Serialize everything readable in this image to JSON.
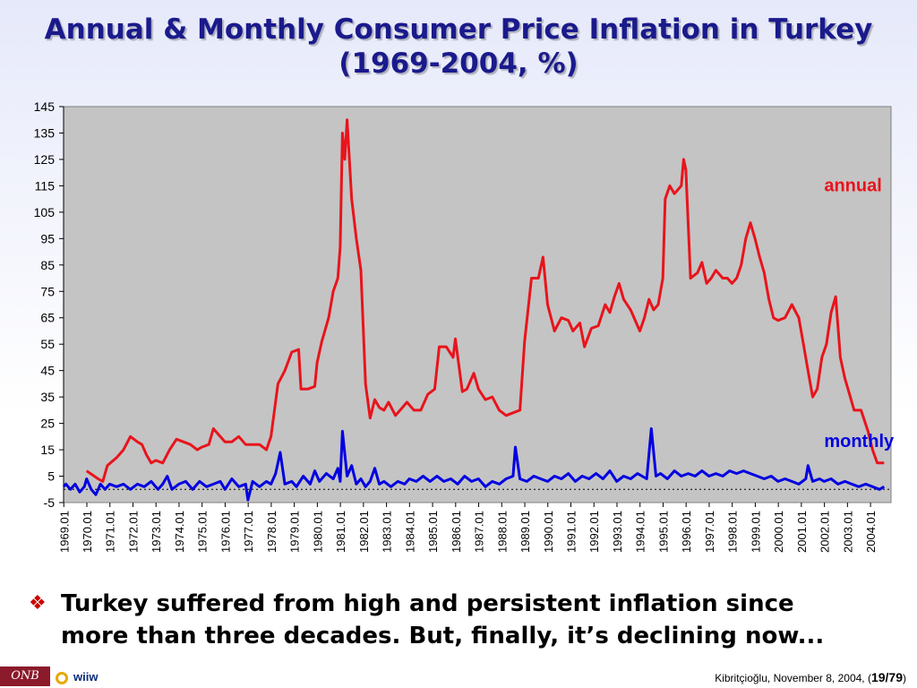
{
  "slide": {
    "title_line1": "Annual & Monthly Consumer Price Inflation in Turkey",
    "title_line2": "(1969-2004, %)",
    "bullet_line1": "Turkey suffered from high and persistent inflation since",
    "bullet_line2": "more than three decades. But, finally, it’s declining now...",
    "logo_onb": "ONB",
    "logo_wiiw": "wiiw",
    "credit_text": "Kibritçioğlu, November 8, 2004, (",
    "credit_page": "19/79",
    "credit_close": ")",
    "icons": {
      "bullet": "diamond-bullet-icon",
      "wiiw": "ring-logo-icon"
    }
  },
  "colors": {
    "annual": "#e8141c",
    "monthly": "#0000e0",
    "title": "#1a1a8c",
    "plot_bg": "#c0c0c0"
  },
  "chart_data": {
    "type": "line",
    "title": "Annual & Monthly Consumer Price Inflation in Turkey (1969-2004, %)",
    "ylim": [
      -5,
      145
    ],
    "yticks": [
      145,
      135,
      125,
      115,
      105,
      95,
      85,
      75,
      65,
      55,
      45,
      35,
      25,
      15,
      5,
      -5
    ],
    "x_range": [
      1969.0,
      2004.9
    ],
    "xtick_labels": [
      "1969.01",
      "1970.01",
      "1971.01",
      "1972.01",
      "1973.01",
      "1974.01",
      "1975.01",
      "1976.01",
      "1977.01",
      "1978.01",
      "1979.01",
      "1980.01",
      "1981.01",
      "1982.01",
      "1983.01",
      "1984.01",
      "1985.01",
      "1986.01",
      "1987.01",
      "1988.01",
      "1989.01",
      "1990.01",
      "1991.01",
      "1992.01",
      "1993.01",
      "1994.01",
      "1995.01",
      "1996.01",
      "1997.01",
      "1998.01",
      "1999.01",
      "2000.01",
      "2001.01",
      "2002.01",
      "2003.01",
      "2004.01"
    ],
    "grid": false,
    "zero_line": "dotted",
    "series": [
      {
        "name": "annual",
        "color": "#e8141c",
        "points": [
          [
            1970.0,
            7
          ],
          [
            1970.5,
            4
          ],
          [
            1970.7,
            3
          ],
          [
            1970.9,
            9
          ],
          [
            1971.3,
            12
          ],
          [
            1971.6,
            15
          ],
          [
            1971.9,
            20
          ],
          [
            1972.2,
            18
          ],
          [
            1972.4,
            17
          ],
          [
            1972.6,
            13
          ],
          [
            1972.8,
            10
          ],
          [
            1973.0,
            11
          ],
          [
            1973.3,
            10
          ],
          [
            1973.6,
            15
          ],
          [
            1973.9,
            19
          ],
          [
            1974.2,
            18
          ],
          [
            1974.5,
            17
          ],
          [
            1974.8,
            15
          ],
          [
            1975.0,
            16
          ],
          [
            1975.3,
            17
          ],
          [
            1975.5,
            23
          ],
          [
            1975.7,
            21
          ],
          [
            1976.0,
            18
          ],
          [
            1976.3,
            18
          ],
          [
            1976.6,
            20
          ],
          [
            1976.9,
            17
          ],
          [
            1977.2,
            17
          ],
          [
            1977.5,
            17
          ],
          [
            1977.8,
            15
          ],
          [
            1978.0,
            20
          ],
          [
            1978.3,
            40
          ],
          [
            1978.6,
            45
          ],
          [
            1978.9,
            52
          ],
          [
            1979.2,
            53
          ],
          [
            1979.3,
            38
          ],
          [
            1979.6,
            38
          ],
          [
            1979.9,
            39
          ],
          [
            1980.0,
            48
          ],
          [
            1980.2,
            56
          ],
          [
            1980.5,
            65
          ],
          [
            1980.7,
            75
          ],
          [
            1980.9,
            80
          ],
          [
            1981.0,
            92
          ],
          [
            1981.1,
            135
          ],
          [
            1981.2,
            125
          ],
          [
            1981.3,
            140
          ],
          [
            1981.5,
            110
          ],
          [
            1981.7,
            95
          ],
          [
            1981.9,
            83
          ],
          [
            1982.1,
            40
          ],
          [
            1982.3,
            27
          ],
          [
            1982.5,
            34
          ],
          [
            1982.7,
            31
          ],
          [
            1982.9,
            30
          ],
          [
            1983.1,
            33
          ],
          [
            1983.4,
            28
          ],
          [
            1983.6,
            30
          ],
          [
            1983.9,
            33
          ],
          [
            1984.2,
            30
          ],
          [
            1984.5,
            30
          ],
          [
            1984.8,
            36
          ],
          [
            1985.1,
            38
          ],
          [
            1985.3,
            54
          ],
          [
            1985.6,
            54
          ],
          [
            1985.9,
            50
          ],
          [
            1986.0,
            57
          ],
          [
            1986.3,
            37
          ],
          [
            1986.5,
            38
          ],
          [
            1986.8,
            44
          ],
          [
            1987.0,
            38
          ],
          [
            1987.3,
            34
          ],
          [
            1987.6,
            35
          ],
          [
            1987.9,
            30
          ],
          [
            1988.2,
            28
          ],
          [
            1988.5,
            29
          ],
          [
            1988.8,
            30
          ],
          [
            1989.0,
            56
          ],
          [
            1989.3,
            80
          ],
          [
            1989.6,
            80
          ],
          [
            1989.8,
            88
          ],
          [
            1990.0,
            70
          ],
          [
            1990.3,
            60
          ],
          [
            1990.6,
            65
          ],
          [
            1990.9,
            64
          ],
          [
            1991.1,
            60
          ],
          [
            1991.4,
            63
          ],
          [
            1991.6,
            54
          ],
          [
            1991.9,
            61
          ],
          [
            1992.2,
            62
          ],
          [
            1992.5,
            70
          ],
          [
            1992.7,
            67
          ],
          [
            1992.9,
            73
          ],
          [
            1993.1,
            78
          ],
          [
            1993.3,
            72
          ],
          [
            1993.6,
            68
          ],
          [
            1993.9,
            62
          ],
          [
            1994.0,
            60
          ],
          [
            1994.2,
            65
          ],
          [
            1994.4,
            72
          ],
          [
            1994.6,
            68
          ],
          [
            1994.8,
            70
          ],
          [
            1995.0,
            80
          ],
          [
            1995.1,
            110
          ],
          [
            1995.3,
            115
          ],
          [
            1995.5,
            112
          ],
          [
            1995.8,
            115
          ],
          [
            1995.9,
            125
          ],
          [
            1996.0,
            121
          ],
          [
            1996.2,
            80
          ],
          [
            1996.5,
            82
          ],
          [
            1996.7,
            86
          ],
          [
            1996.9,
            78
          ],
          [
            1997.1,
            80
          ],
          [
            1997.3,
            83
          ],
          [
            1997.6,
            80
          ],
          [
            1997.8,
            80
          ],
          [
            1998.0,
            78
          ],
          [
            1998.2,
            80
          ],
          [
            1998.4,
            85
          ],
          [
            1998.6,
            95
          ],
          [
            1998.8,
            101
          ],
          [
            1999.0,
            95
          ],
          [
            1999.2,
            88
          ],
          [
            1999.4,
            82
          ],
          [
            1999.6,
            72
          ],
          [
            1999.8,
            65
          ],
          [
            2000.0,
            64
          ],
          [
            2000.3,
            65
          ],
          [
            2000.6,
            70
          ],
          [
            2000.9,
            65
          ],
          [
            2001.1,
            55
          ],
          [
            2001.3,
            45
          ],
          [
            2001.5,
            35
          ],
          [
            2001.7,
            38
          ],
          [
            2001.9,
            50
          ],
          [
            2002.1,
            55
          ],
          [
            2002.3,
            67
          ],
          [
            2002.5,
            73
          ],
          [
            2002.7,
            50
          ],
          [
            2002.9,
            42
          ],
          [
            2003.1,
            36
          ],
          [
            2003.3,
            30
          ],
          [
            2003.6,
            30
          ],
          [
            2003.9,
            22
          ],
          [
            2004.1,
            15
          ],
          [
            2004.3,
            10
          ],
          [
            2004.6,
            10
          ]
        ]
      },
      {
        "name": "monthly",
        "color": "#0000e0",
        "points": [
          [
            1969.0,
            1
          ],
          [
            1969.1,
            2
          ],
          [
            1969.3,
            0
          ],
          [
            1969.5,
            2
          ],
          [
            1969.7,
            -1
          ],
          [
            1969.9,
            1
          ],
          [
            1970.0,
            4
          ],
          [
            1970.2,
            0
          ],
          [
            1970.4,
            -2
          ],
          [
            1970.6,
            2
          ],
          [
            1970.8,
            0
          ],
          [
            1971.0,
            2
          ],
          [
            1971.3,
            1
          ],
          [
            1971.6,
            2
          ],
          [
            1971.9,
            0
          ],
          [
            1972.2,
            2
          ],
          [
            1972.5,
            1
          ],
          [
            1972.8,
            3
          ],
          [
            1973.1,
            0
          ],
          [
            1973.3,
            2
          ],
          [
            1973.5,
            5
          ],
          [
            1973.7,
            0
          ],
          [
            1974.0,
            2
          ],
          [
            1974.3,
            3
          ],
          [
            1974.6,
            0
          ],
          [
            1974.9,
            3
          ],
          [
            1975.2,
            1
          ],
          [
            1975.5,
            2
          ],
          [
            1975.8,
            3
          ],
          [
            1976.0,
            0
          ],
          [
            1976.3,
            4
          ],
          [
            1976.6,
            1
          ],
          [
            1976.9,
            2
          ],
          [
            1977.0,
            -4
          ],
          [
            1977.2,
            3
          ],
          [
            1977.5,
            1
          ],
          [
            1977.8,
            3
          ],
          [
            1978.0,
            2
          ],
          [
            1978.2,
            6
          ],
          [
            1978.4,
            14
          ],
          [
            1978.6,
            2
          ],
          [
            1978.9,
            3
          ],
          [
            1979.1,
            1
          ],
          [
            1979.4,
            5
          ],
          [
            1979.7,
            2
          ],
          [
            1979.9,
            7
          ],
          [
            1980.1,
            3
          ],
          [
            1980.4,
            6
          ],
          [
            1980.7,
            4
          ],
          [
            1980.9,
            8
          ],
          [
            1981.0,
            3
          ],
          [
            1981.1,
            22
          ],
          [
            1981.3,
            5
          ],
          [
            1981.5,
            9
          ],
          [
            1981.7,
            2
          ],
          [
            1981.9,
            4
          ],
          [
            1982.1,
            1
          ],
          [
            1982.3,
            3
          ],
          [
            1982.5,
            8
          ],
          [
            1982.7,
            2
          ],
          [
            1982.9,
            3
          ],
          [
            1983.2,
            1
          ],
          [
            1983.5,
            3
          ],
          [
            1983.8,
            2
          ],
          [
            1984.0,
            4
          ],
          [
            1984.3,
            3
          ],
          [
            1984.6,
            5
          ],
          [
            1984.9,
            3
          ],
          [
            1985.2,
            5
          ],
          [
            1985.5,
            3
          ],
          [
            1985.8,
            4
          ],
          [
            1986.1,
            2
          ],
          [
            1986.4,
            5
          ],
          [
            1986.7,
            3
          ],
          [
            1987.0,
            4
          ],
          [
            1987.3,
            1
          ],
          [
            1987.6,
            3
          ],
          [
            1987.9,
            2
          ],
          [
            1988.2,
            4
          ],
          [
            1988.5,
            5
          ],
          [
            1988.6,
            16
          ],
          [
            1988.8,
            4
          ],
          [
            1989.1,
            3
          ],
          [
            1989.4,
            5
          ],
          [
            1989.7,
            4
          ],
          [
            1990.0,
            3
          ],
          [
            1990.3,
            5
          ],
          [
            1990.6,
            4
          ],
          [
            1990.9,
            6
          ],
          [
            1991.2,
            3
          ],
          [
            1991.5,
            5
          ],
          [
            1991.8,
            4
          ],
          [
            1992.1,
            6
          ],
          [
            1992.4,
            4
          ],
          [
            1992.7,
            7
          ],
          [
            1993.0,
            3
          ],
          [
            1993.3,
            5
          ],
          [
            1993.6,
            4
          ],
          [
            1993.9,
            6
          ],
          [
            1994.1,
            5
          ],
          [
            1994.3,
            4
          ],
          [
            1994.5,
            23
          ],
          [
            1994.7,
            5
          ],
          [
            1994.9,
            6
          ],
          [
            1995.2,
            4
          ],
          [
            1995.5,
            7
          ],
          [
            1995.8,
            5
          ],
          [
            1996.1,
            6
          ],
          [
            1996.4,
            5
          ],
          [
            1996.7,
            7
          ],
          [
            1997.0,
            5
          ],
          [
            1997.3,
            6
          ],
          [
            1997.6,
            5
          ],
          [
            1997.9,
            7
          ],
          [
            1998.2,
            6
          ],
          [
            1998.5,
            7
          ],
          [
            1998.8,
            6
          ],
          [
            1999.1,
            5
          ],
          [
            1999.4,
            4
          ],
          [
            1999.7,
            5
          ],
          [
            2000.0,
            3
          ],
          [
            2000.3,
            4
          ],
          [
            2000.6,
            3
          ],
          [
            2000.9,
            2
          ],
          [
            2001.2,
            4
          ],
          [
            2001.3,
            9
          ],
          [
            2001.5,
            3
          ],
          [
            2001.8,
            4
          ],
          [
            2002.0,
            3
          ],
          [
            2002.3,
            4
          ],
          [
            2002.6,
            2
          ],
          [
            2002.9,
            3
          ],
          [
            2003.2,
            2
          ],
          [
            2003.5,
            1
          ],
          [
            2003.8,
            2
          ],
          [
            2004.1,
            1
          ],
          [
            2004.4,
            0
          ],
          [
            2004.6,
            1
          ]
        ]
      }
    ],
    "annotations": [
      {
        "text": "annual",
        "x": 2002.0,
        "y": 113,
        "series": "annual"
      },
      {
        "text": "monthly",
        "x": 2002.0,
        "y": 16,
        "series": "monthly"
      }
    ]
  }
}
